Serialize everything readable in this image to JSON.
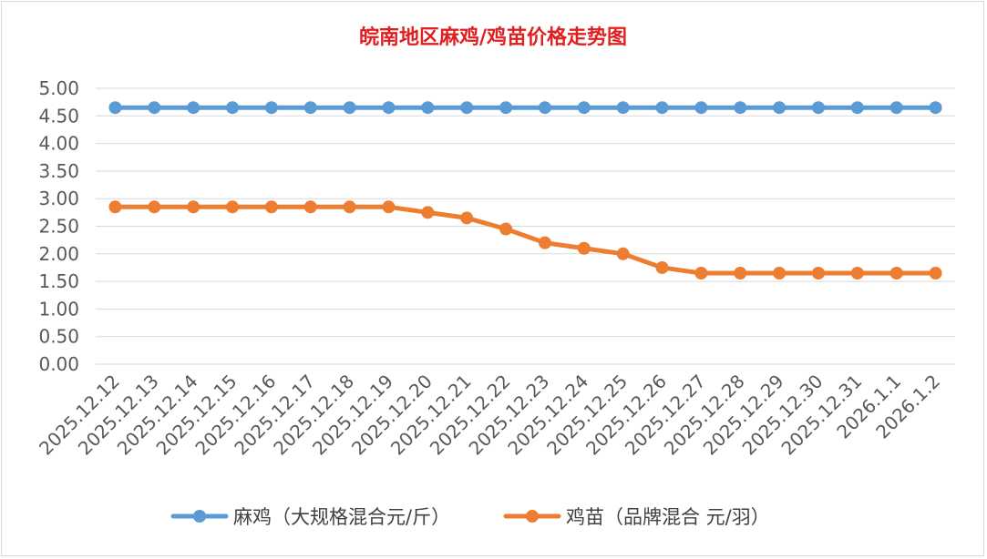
{
  "chart_data": {
    "type": "line",
    "title": "皖南地区麻鸡/鸡苗价格走势图",
    "title_color": "#E02020",
    "xlabel": "",
    "ylabel": "",
    "ylim": [
      0,
      5
    ],
    "ytick_step": 0.5,
    "yticks": [
      "0.00",
      "0.50",
      "1.00",
      "1.50",
      "2.00",
      "2.50",
      "3.00",
      "3.50",
      "4.00",
      "4.50",
      "5.00"
    ],
    "grid": true,
    "legend_position": "bottom",
    "categories": [
      "2025.12.12",
      "2025.12.13",
      "2025.12.14",
      "2025.12.15",
      "2025.12.16",
      "2025.12.17",
      "2025.12.18",
      "2025.12.19",
      "2025.12.20",
      "2025.12.21",
      "2025.12.22",
      "2025.12.23",
      "2025.12.24",
      "2025.12.25",
      "2025.12.26",
      "2025.12.27",
      "2025.12.28",
      "2025.12.29",
      "2025.12.30",
      "2025.12.31",
      "2026.1.1",
      "2026.1.2"
    ],
    "series": [
      {
        "name": "麻鸡（大规格混合元/斤）",
        "color": "#5B9BD5",
        "values": [
          4.65,
          4.65,
          4.65,
          4.65,
          4.65,
          4.65,
          4.65,
          4.65,
          4.65,
          4.65,
          4.65,
          4.65,
          4.65,
          4.65,
          4.65,
          4.65,
          4.65,
          4.65,
          4.65,
          4.65,
          4.65,
          4.65
        ]
      },
      {
        "name": "鸡苗（品牌混合 元/羽）",
        "color": "#ED7D31",
        "values": [
          2.85,
          2.85,
          2.85,
          2.85,
          2.85,
          2.85,
          2.85,
          2.85,
          2.75,
          2.65,
          2.45,
          2.2,
          2.1,
          2.0,
          1.75,
          1.65,
          1.65,
          1.65,
          1.65,
          1.65,
          1.65,
          1.65
        ]
      }
    ]
  }
}
